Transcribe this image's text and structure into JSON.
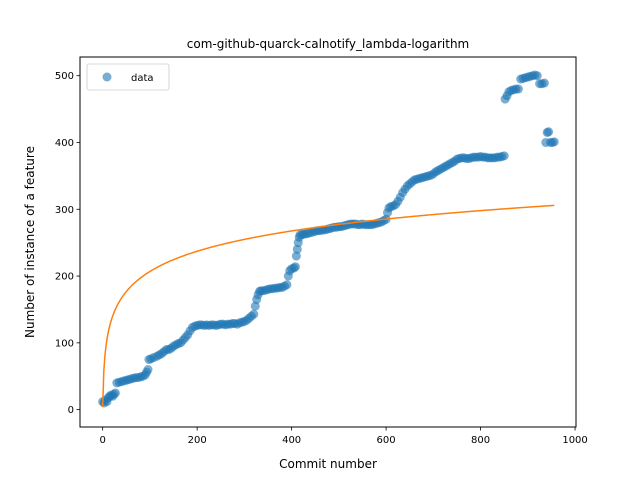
{
  "chart_data": {
    "type": "scatter",
    "title": "com-github-quarck-calnotify_lambda-logarithm",
    "xlabel": "Commit number",
    "ylabel": "Number of instance of a feature",
    "xlim": [
      -48,
      1002
    ],
    "ylim": [
      -26,
      528
    ],
    "xticks": [
      0,
      200,
      400,
      600,
      800,
      1000
    ],
    "yticks": [
      0,
      100,
      200,
      300,
      400,
      500
    ],
    "grid": false,
    "legend": {
      "position": "top-left",
      "entries": [
        "data"
      ]
    },
    "colors": {
      "data": "#1f77b4",
      "fit": "#ff7f0e"
    },
    "series": [
      {
        "name": "data",
        "kind": "scatter",
        "points": [
          [
            0,
            12
          ],
          [
            3,
            10
          ],
          [
            6,
            14
          ],
          [
            9,
            12
          ],
          [
            12,
            18
          ],
          [
            15,
            20
          ],
          [
            18,
            22
          ],
          [
            21,
            20
          ],
          [
            24,
            23
          ],
          [
            27,
            25
          ],
          [
            30,
            40
          ],
          [
            35,
            41
          ],
          [
            40,
            42
          ],
          [
            45,
            43
          ],
          [
            50,
            44
          ],
          [
            55,
            45
          ],
          [
            60,
            46
          ],
          [
            65,
            47
          ],
          [
            70,
            48
          ],
          [
            75,
            48
          ],
          [
            80,
            49
          ],
          [
            85,
            50
          ],
          [
            90,
            52
          ],
          [
            93,
            56
          ],
          [
            96,
            60
          ],
          [
            98,
            75
          ],
          [
            102,
            76
          ],
          [
            108,
            78
          ],
          [
            115,
            80
          ],
          [
            120,
            82
          ],
          [
            125,
            84
          ],
          [
            130,
            87
          ],
          [
            135,
            90
          ],
          [
            140,
            90
          ],
          [
            145,
            92
          ],
          [
            150,
            95
          ],
          [
            155,
            97
          ],
          [
            160,
            99
          ],
          [
            165,
            100
          ],
          [
            170,
            104
          ],
          [
            175,
            108
          ],
          [
            180,
            112
          ],
          [
            185,
            118
          ],
          [
            190,
            123
          ],
          [
            195,
            125
          ],
          [
            200,
            126
          ],
          [
            205,
            127
          ],
          [
            210,
            127
          ],
          [
            215,
            126
          ],
          [
            220,
            127
          ],
          [
            225,
            126
          ],
          [
            230,
            127
          ],
          [
            235,
            127
          ],
          [
            240,
            126
          ],
          [
            245,
            127
          ],
          [
            250,
            128
          ],
          [
            255,
            128
          ],
          [
            260,
            127
          ],
          [
            265,
            128
          ],
          [
            270,
            128
          ],
          [
            275,
            129
          ],
          [
            280,
            129
          ],
          [
            285,
            128
          ],
          [
            290,
            130
          ],
          [
            295,
            131
          ],
          [
            300,
            132
          ],
          [
            305,
            134
          ],
          [
            310,
            137
          ],
          [
            315,
            140
          ],
          [
            320,
            143
          ],
          [
            323,
            155
          ],
          [
            326,
            165
          ],
          [
            329,
            172
          ],
          [
            332,
            177
          ],
          [
            335,
            178
          ],
          [
            340,
            178
          ],
          [
            345,
            179
          ],
          [
            350,
            180
          ],
          [
            355,
            181
          ],
          [
            360,
            181
          ],
          [
            365,
            182
          ],
          [
            370,
            182
          ],
          [
            375,
            183
          ],
          [
            380,
            183
          ],
          [
            385,
            185
          ],
          [
            390,
            187
          ],
          [
            393,
            200
          ],
          [
            396,
            208
          ],
          [
            400,
            211
          ],
          [
            405,
            212
          ],
          [
            408,
            214
          ],
          [
            410,
            230
          ],
          [
            412,
            240
          ],
          [
            414,
            250
          ],
          [
            416,
            258
          ],
          [
            418,
            262
          ],
          [
            422,
            262
          ],
          [
            426,
            263
          ],
          [
            430,
            263
          ],
          [
            435,
            264
          ],
          [
            440,
            265
          ],
          [
            445,
            266
          ],
          [
            450,
            267
          ],
          [
            455,
            268
          ],
          [
            460,
            268
          ],
          [
            465,
            269
          ],
          [
            470,
            269
          ],
          [
            475,
            270
          ],
          [
            480,
            271
          ],
          [
            485,
            272
          ],
          [
            490,
            273
          ],
          [
            495,
            273
          ],
          [
            500,
            274
          ],
          [
            505,
            274
          ],
          [
            510,
            275
          ],
          [
            515,
            276
          ],
          [
            520,
            277
          ],
          [
            525,
            278
          ],
          [
            530,
            278
          ],
          [
            535,
            278
          ],
          [
            540,
            277
          ],
          [
            545,
            277
          ],
          [
            550,
            278
          ],
          [
            555,
            277
          ],
          [
            560,
            277
          ],
          [
            565,
            277
          ],
          [
            570,
            277
          ],
          [
            575,
            278
          ],
          [
            580,
            279
          ],
          [
            585,
            280
          ],
          [
            590,
            281
          ],
          [
            595,
            283
          ],
          [
            600,
            285
          ],
          [
            603,
            295
          ],
          [
            606,
            302
          ],
          [
            610,
            304
          ],
          [
            615,
            305
          ],
          [
            620,
            307
          ],
          [
            625,
            312
          ],
          [
            630,
            318
          ],
          [
            635,
            325
          ],
          [
            640,
            330
          ],
          [
            645,
            335
          ],
          [
            650,
            338
          ],
          [
            655,
            341
          ],
          [
            660,
            344
          ],
          [
            665,
            345
          ],
          [
            670,
            346
          ],
          [
            675,
            347
          ],
          [
            680,
            348
          ],
          [
            685,
            349
          ],
          [
            690,
            350
          ],
          [
            695,
            351
          ],
          [
            700,
            353
          ],
          [
            705,
            356
          ],
          [
            710,
            358
          ],
          [
            715,
            360
          ],
          [
            720,
            362
          ],
          [
            725,
            364
          ],
          [
            730,
            366
          ],
          [
            735,
            368
          ],
          [
            740,
            370
          ],
          [
            745,
            372
          ],
          [
            750,
            375
          ],
          [
            755,
            376
          ],
          [
            760,
            377
          ],
          [
            765,
            377
          ],
          [
            770,
            376
          ],
          [
            775,
            376
          ],
          [
            780,
            377
          ],
          [
            785,
            378
          ],
          [
            790,
            378
          ],
          [
            795,
            378
          ],
          [
            800,
            379
          ],
          [
            805,
            378
          ],
          [
            810,
            378
          ],
          [
            815,
            377
          ],
          [
            820,
            377
          ],
          [
            825,
            377
          ],
          [
            830,
            377
          ],
          [
            835,
            378
          ],
          [
            840,
            378
          ],
          [
            845,
            379
          ],
          [
            850,
            380
          ],
          [
            852,
            465
          ],
          [
            856,
            470
          ],
          [
            860,
            476
          ],
          [
            865,
            478
          ],
          [
            870,
            479
          ],
          [
            875,
            480
          ],
          [
            880,
            480
          ],
          [
            885,
            495
          ],
          [
            890,
            496
          ],
          [
            895,
            497
          ],
          [
            900,
            498
          ],
          [
            905,
            499
          ],
          [
            910,
            500
          ],
          [
            915,
            501
          ],
          [
            920,
            500
          ],
          [
            925,
            488
          ],
          [
            930,
            488
          ],
          [
            935,
            489
          ],
          [
            938,
            400
          ],
          [
            941,
            415
          ],
          [
            944,
            416
          ],
          [
            948,
            400
          ],
          [
            952,
            400
          ],
          [
            956,
            401
          ]
        ]
      },
      {
        "name": "",
        "kind": "line",
        "model": "logarithm",
        "a": 44,
        "b": 3.8,
        "x_range": [
          0,
          956
        ]
      }
    ]
  }
}
